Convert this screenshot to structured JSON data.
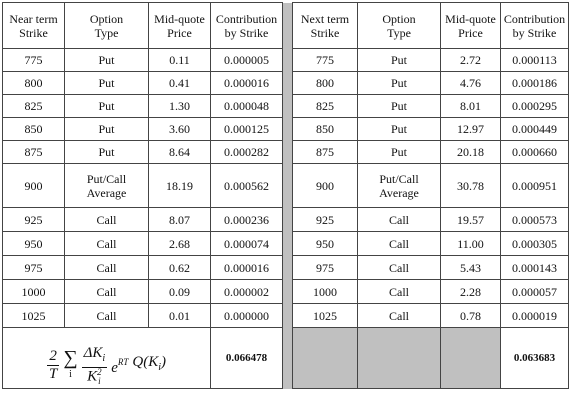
{
  "header": [
    "Near term\nStrike",
    "Option\nType",
    "Mid-quote\nPrice",
    "Contribution\nby Strike",
    "Next term\nStrike",
    "Option\nType",
    "Mid-quote\nPrice",
    "Contribution\nby Strike"
  ],
  "rows": [
    [
      "775",
      "Put",
      "0.11",
      "0.000005",
      "775",
      "Put",
      "2.72",
      "0.000113"
    ],
    [
      "800",
      "Put",
      "0.41",
      "0.000016",
      "800",
      "Put",
      "4.76",
      "0.000186"
    ],
    [
      "825",
      "Put",
      "1.30",
      "0.000048",
      "825",
      "Put",
      "8.01",
      "0.000295"
    ],
    [
      "850",
      "Put",
      "3.60",
      "0.000125",
      "850",
      "Put",
      "12.97",
      "0.000449"
    ],
    [
      "875",
      "Put",
      "8.64",
      "0.000282",
      "875",
      "Put",
      "20.18",
      "0.000660"
    ],
    [
      "900",
      "Put/Call\nAverage",
      "18.19",
      "0.000562",
      "900",
      "Put/Call\nAverage",
      "30.78",
      "0.000951"
    ],
    [
      "925",
      "Call",
      "8.07",
      "0.000236",
      "925",
      "Call",
      "19.57",
      "0.000573"
    ],
    [
      "950",
      "Call",
      "2.68",
      "0.000074",
      "950",
      "Call",
      "11.00",
      "0.000305"
    ],
    [
      "975",
      "Call",
      "0.62",
      "0.000016",
      "975",
      "Call",
      "5.43",
      "0.000143"
    ],
    [
      "1000",
      "Call",
      "0.09",
      "0.000002",
      "1000",
      "Call",
      "2.28",
      "0.000057"
    ],
    [
      "1025",
      "Call",
      "0.01",
      "0.000000",
      "1025",
      "Call",
      "0.78",
      "0.000019"
    ]
  ],
  "footer": {
    "formula": [
      "2",
      "T",
      "∑",
      "i",
      "ΔK",
      "i",
      "K",
      "2",
      "i",
      "e",
      "RT",
      "Q(K",
      "i",
      ")"
    ],
    "left_total": "0.066478",
    "right_total": "0.063683"
  }
}
